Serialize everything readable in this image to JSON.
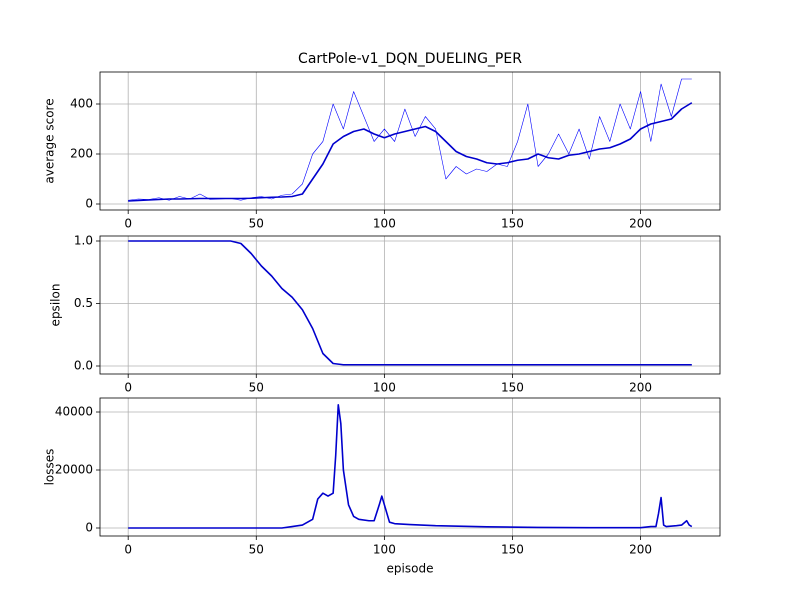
{
  "chart_data": [
    {
      "type": "line",
      "title": "CartPole-v1_DQN_DUELING_PER",
      "ylabel": "average score",
      "x": [
        0,
        4,
        8,
        12,
        16,
        20,
        24,
        28,
        32,
        36,
        40,
        44,
        48,
        52,
        56,
        60,
        64,
        68,
        72,
        76,
        80,
        84,
        88,
        92,
        96,
        100,
        104,
        108,
        112,
        116,
        120,
        124,
        128,
        132,
        136,
        140,
        144,
        148,
        152,
        156,
        160,
        164,
        168,
        172,
        176,
        180,
        184,
        188,
        192,
        196,
        200,
        204,
        208,
        212,
        216,
        220
      ],
      "series": [
        {
          "color": "#0000ff",
          "values": [
            15,
            20,
            18,
            25,
            15,
            30,
            20,
            40,
            18,
            20,
            22,
            15,
            25,
            30,
            20,
            35,
            40,
            80,
            200,
            250,
            400,
            300,
            450,
            350,
            250,
            300,
            250,
            380,
            270,
            350,
            300,
            100,
            150,
            120,
            140,
            130,
            160,
            150,
            250,
            400,
            150,
            200,
            280,
            200,
            300,
            180,
            350,
            250,
            400,
            300,
            450,
            250,
            480,
            350,
            500,
            500
          ]
        },
        {
          "color": "#0000cd",
          "values": [
            12,
            14,
            16,
            18,
            20,
            20,
            21,
            22,
            22,
            22,
            22,
            22,
            23,
            25,
            27,
            28,
            30,
            40,
            100,
            160,
            240,
            270,
            290,
            300,
            280,
            265,
            280,
            290,
            300,
            310,
            290,
            250,
            210,
            190,
            180,
            165,
            160,
            165,
            175,
            180,
            200,
            185,
            180,
            195,
            200,
            210,
            220,
            225,
            240,
            260,
            300,
            320,
            330,
            340,
            380,
            405
          ]
        }
      ],
      "xlim": [
        -11,
        231
      ],
      "xticks": [
        0,
        50,
        100,
        150,
        200
      ],
      "ylim": [
        -24,
        528
      ],
      "yticks": [
        0,
        200,
        400
      ],
      "grid": true
    },
    {
      "type": "line",
      "ylabel": "epsilon",
      "x": [
        0,
        4,
        8,
        12,
        16,
        20,
        24,
        28,
        32,
        36,
        40,
        44,
        48,
        52,
        56,
        60,
        64,
        68,
        72,
        76,
        80,
        84,
        100,
        120,
        140,
        160,
        180,
        200,
        220
      ],
      "series": [
        {
          "color": "#0000cd",
          "values": [
            1,
            1,
            1,
            1,
            1,
            1,
            1,
            1,
            1,
            1,
            1,
            0.98,
            0.9,
            0.8,
            0.72,
            0.62,
            0.55,
            0.45,
            0.3,
            0.1,
            0.02,
            0.01,
            0.01,
            0.01,
            0.01,
            0.01,
            0.01,
            0.01,
            0.01
          ]
        }
      ],
      "xlim": [
        -11,
        231
      ],
      "xticks": [
        0,
        50,
        100,
        150,
        200
      ],
      "ylim": [
        -0.064,
        1.04
      ],
      "yticks": [
        {
          "value": 0,
          "label": "0.0"
        },
        {
          "value": 0.5,
          "label": "0.5"
        },
        {
          "value": 1,
          "label": "1.0"
        }
      ],
      "grid": true
    },
    {
      "type": "line",
      "ylabel": "losses",
      "xlabel": "episode",
      "x": [
        0,
        10,
        20,
        30,
        40,
        50,
        60,
        64,
        68,
        72,
        74,
        76,
        78,
        80,
        81,
        82,
        83,
        84,
        86,
        88,
        90,
        94,
        96,
        98,
        99,
        100,
        102,
        104,
        110,
        120,
        140,
        160,
        180,
        200,
        204,
        206,
        207,
        208,
        209,
        210,
        214,
        216,
        218,
        219,
        220
      ],
      "series": [
        {
          "color": "#0000cd",
          "values": [
            0,
            0,
            0,
            0,
            0,
            0,
            0,
            500,
            1000,
            3000,
            10000,
            12000,
            11000,
            12000,
            25000,
            42500,
            36000,
            20000,
            8000,
            4000,
            3000,
            2500,
            2500,
            8000,
            11000,
            8000,
            2000,
            1500,
            1200,
            800,
            400,
            200,
            100,
            100,
            500,
            500,
            5000,
            10500,
            1000,
            500,
            800,
            1000,
            2500,
            1000,
            500
          ]
        }
      ],
      "xlim": [
        -11,
        231
      ],
      "xticks": [
        0,
        50,
        100,
        150,
        200
      ],
      "ylim": [
        -2760,
        44830
      ],
      "yticks": [
        0,
        20000,
        40000
      ],
      "grid": true
    }
  ]
}
